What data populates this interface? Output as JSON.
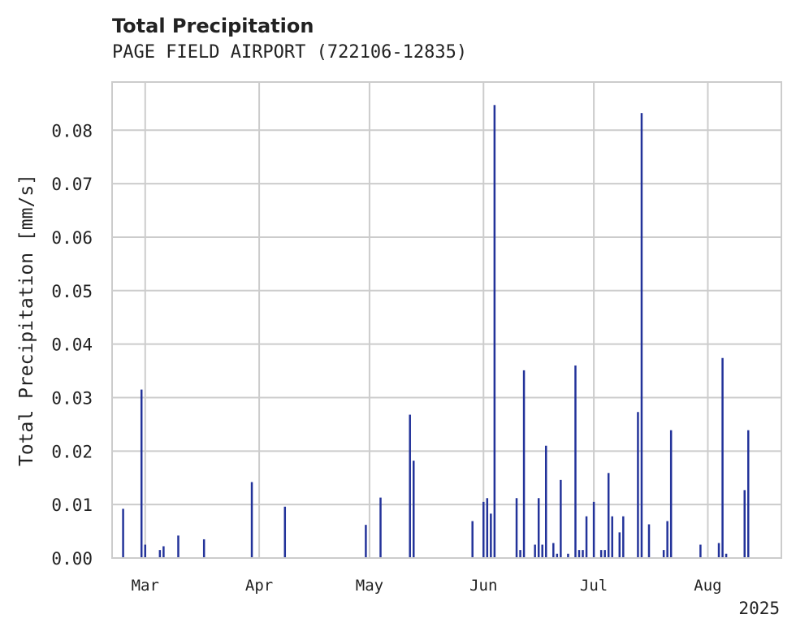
{
  "chart_data": {
    "type": "bar",
    "title": "Total Precipitation",
    "subtitle": "PAGE FIELD AIRPORT (722106-12835)",
    "ylabel": "Total Precipitation [mm/s]",
    "xlabel": "",
    "year_label": "2025",
    "ylim": [
      0,
      0.089
    ],
    "yticks": [
      "0.00",
      "0.01",
      "0.02",
      "0.03",
      "0.04",
      "0.05",
      "0.06",
      "0.07",
      "0.08"
    ],
    "x_range": [
      "2025-02-20",
      "2025-08-21"
    ],
    "month_ticks": [
      {
        "date": "2025-03-01",
        "label": "Mar"
      },
      {
        "date": "2025-04-01",
        "label": "Apr"
      },
      {
        "date": "2025-05-01",
        "label": "May"
      },
      {
        "date": "2025-06-01",
        "label": "Jun"
      },
      {
        "date": "2025-07-01",
        "label": "Jul"
      },
      {
        "date": "2025-08-01",
        "label": "Aug"
      }
    ],
    "grid": true,
    "color": "#23339a",
    "x": [
      "2025-02-23",
      "2025-02-28",
      "2025-03-01",
      "2025-03-05",
      "2025-03-06",
      "2025-03-10",
      "2025-03-17",
      "2025-03-30",
      "2025-04-08",
      "2025-04-30",
      "2025-05-04",
      "2025-05-12",
      "2025-05-13",
      "2025-05-29",
      "2025-06-01",
      "2025-06-02",
      "2025-06-03",
      "2025-06-04",
      "2025-06-10",
      "2025-06-11",
      "2025-06-12",
      "2025-06-15",
      "2025-06-16",
      "2025-06-17",
      "2025-06-18",
      "2025-06-20",
      "2025-06-21",
      "2025-06-22",
      "2025-06-24",
      "2025-06-26",
      "2025-06-27",
      "2025-06-28",
      "2025-06-29",
      "2025-07-01",
      "2025-07-03",
      "2025-07-04",
      "2025-07-05",
      "2025-07-06",
      "2025-07-08",
      "2025-07-09",
      "2025-07-13",
      "2025-07-14",
      "2025-07-16",
      "2025-07-20",
      "2025-07-21",
      "2025-07-22",
      "2025-07-30",
      "2025-08-04",
      "2025-08-05",
      "2025-08-06",
      "2025-08-11",
      "2025-08-12"
    ],
    "values": [
      0.0092,
      0.0315,
      0.0025,
      0.0015,
      0.0022,
      0.0042,
      0.0035,
      0.0142,
      0.0096,
      0.0062,
      0.0113,
      0.0268,
      0.0182,
      0.0069,
      0.0105,
      0.0112,
      0.0083,
      0.0847,
      0.0112,
      0.0015,
      0.0351,
      0.0025,
      0.0112,
      0.0025,
      0.021,
      0.0028,
      0.0008,
      0.0146,
      0.0008,
      0.036,
      0.0015,
      0.0015,
      0.0078,
      0.0105,
      0.0015,
      0.0015,
      0.0159,
      0.0078,
      0.0048,
      0.0078,
      0.0273,
      0.0832,
      0.0063,
      0.0015,
      0.0069,
      0.0239,
      0.0025,
      0.0028,
      0.0374,
      0.0008,
      0.0127,
      0.0239
    ]
  }
}
